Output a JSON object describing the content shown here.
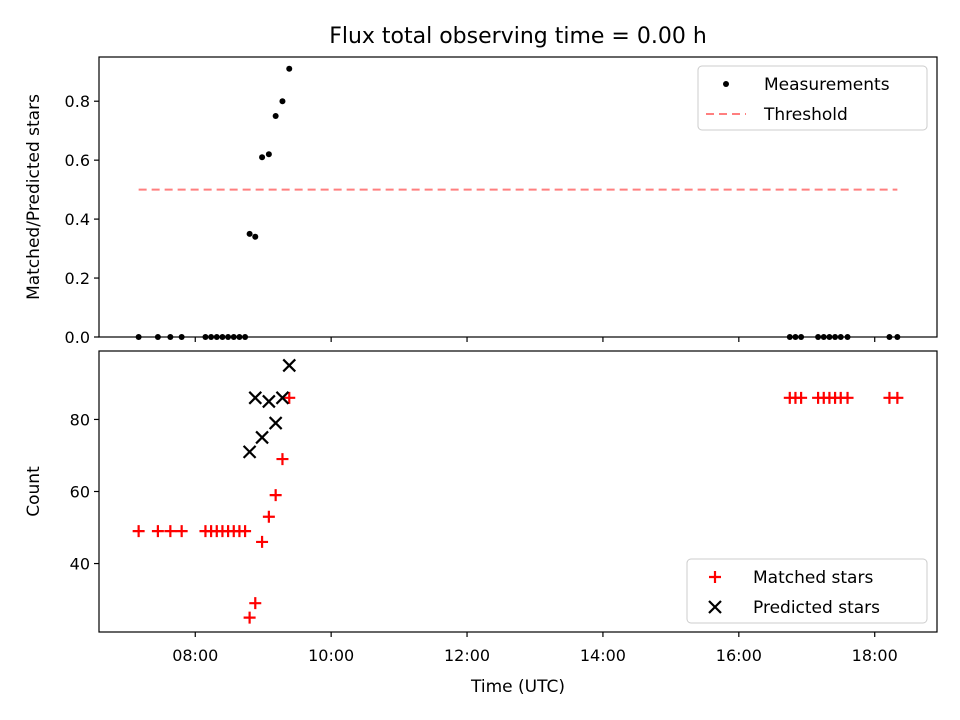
{
  "title": "Flux total observing time = 0.00 h",
  "colors": {
    "measurements": "#000000",
    "threshold": "#ff7f7f",
    "matched": "#ff0000",
    "predicted": "#000000"
  },
  "chart_data": [
    {
      "type": "scatter",
      "panel": "top",
      "ylabel": "Matched/Predicted stars",
      "xlabel": "",
      "xlim": [
        "06:35",
        "18:55"
      ],
      "ylim": [
        0,
        0.95
      ],
      "yticks": [
        0.0,
        0.2,
        0.4,
        0.6,
        0.8
      ],
      "grid": false,
      "legend": {
        "placement": "top-right",
        "entries": [
          "Measurements",
          "Threshold"
        ]
      },
      "series": [
        {
          "name": "Measurements",
          "marker": "dot",
          "points": [
            [
              "07:10",
              0.0
            ],
            [
              "07:27",
              0.0
            ],
            [
              "07:38",
              0.0
            ],
            [
              "07:48",
              0.0
            ],
            [
              "08:09",
              0.0
            ],
            [
              "08:14",
              0.0
            ],
            [
              "08:19",
              0.0
            ],
            [
              "08:24",
              0.0
            ],
            [
              "08:29",
              0.0
            ],
            [
              "08:34",
              0.0
            ],
            [
              "08:39",
              0.0
            ],
            [
              "08:44",
              0.0
            ],
            [
              "08:48",
              0.35
            ],
            [
              "08:53",
              0.34
            ],
            [
              "08:59",
              0.61
            ],
            [
              "09:05",
              0.62
            ],
            [
              "09:11",
              0.75
            ],
            [
              "09:17",
              0.8
            ],
            [
              "09:23",
              0.91
            ],
            [
              "16:45",
              0.0
            ],
            [
              "16:50",
              0.0
            ],
            [
              "16:55",
              0.0
            ],
            [
              "17:10",
              0.0
            ],
            [
              "17:15",
              0.0
            ],
            [
              "17:20",
              0.0
            ],
            [
              "17:25",
              0.0
            ],
            [
              "17:30",
              0.0
            ],
            [
              "17:36",
              0.0
            ],
            [
              "18:13",
              0.0
            ],
            [
              "18:20",
              0.0
            ]
          ]
        },
        {
          "name": "Threshold",
          "line": "dashed",
          "points": [
            [
              "07:10",
              0.5
            ],
            [
              "18:20",
              0.5
            ]
          ]
        }
      ]
    },
    {
      "type": "scatter",
      "panel": "bottom",
      "ylabel": "Count",
      "xlabel": "Time (UTC)",
      "xlim": [
        "06:35",
        "18:55"
      ],
      "ylim": [
        21,
        99
      ],
      "yticks": [
        40,
        60,
        80
      ],
      "xticks": [
        "08:00",
        "10:00",
        "12:00",
        "14:00",
        "16:00",
        "18:00"
      ],
      "grid": false,
      "legend": {
        "placement": "bottom-right",
        "entries": [
          "Matched stars",
          "Predicted stars"
        ]
      },
      "series": [
        {
          "name": "Matched stars",
          "marker": "plus",
          "points": [
            [
              "07:10",
              49
            ],
            [
              "07:27",
              49
            ],
            [
              "07:38",
              49
            ],
            [
              "07:48",
              49
            ],
            [
              "08:09",
              49
            ],
            [
              "08:14",
              49
            ],
            [
              "08:19",
              49
            ],
            [
              "08:24",
              49
            ],
            [
              "08:29",
              49
            ],
            [
              "08:34",
              49
            ],
            [
              "08:39",
              49
            ],
            [
              "08:44",
              49
            ],
            [
              "08:48",
              25
            ],
            [
              "08:53",
              29
            ],
            [
              "08:59",
              46
            ],
            [
              "09:05",
              53
            ],
            [
              "09:11",
              59
            ],
            [
              "09:17",
              69
            ],
            [
              "09:23",
              86
            ],
            [
              "16:45",
              86
            ],
            [
              "16:50",
              86
            ],
            [
              "16:55",
              86
            ],
            [
              "17:10",
              86
            ],
            [
              "17:15",
              86
            ],
            [
              "17:20",
              86
            ],
            [
              "17:25",
              86
            ],
            [
              "17:30",
              86
            ],
            [
              "17:36",
              86
            ],
            [
              "18:13",
              86
            ],
            [
              "18:20",
              86
            ]
          ]
        },
        {
          "name": "Predicted stars",
          "marker": "x",
          "points": [
            [
              "08:48",
              71
            ],
            [
              "08:53",
              86
            ],
            [
              "08:59",
              75
            ],
            [
              "09:05",
              85
            ],
            [
              "09:11",
              79
            ],
            [
              "09:17",
              86
            ],
            [
              "09:23",
              95
            ]
          ]
        }
      ]
    }
  ]
}
